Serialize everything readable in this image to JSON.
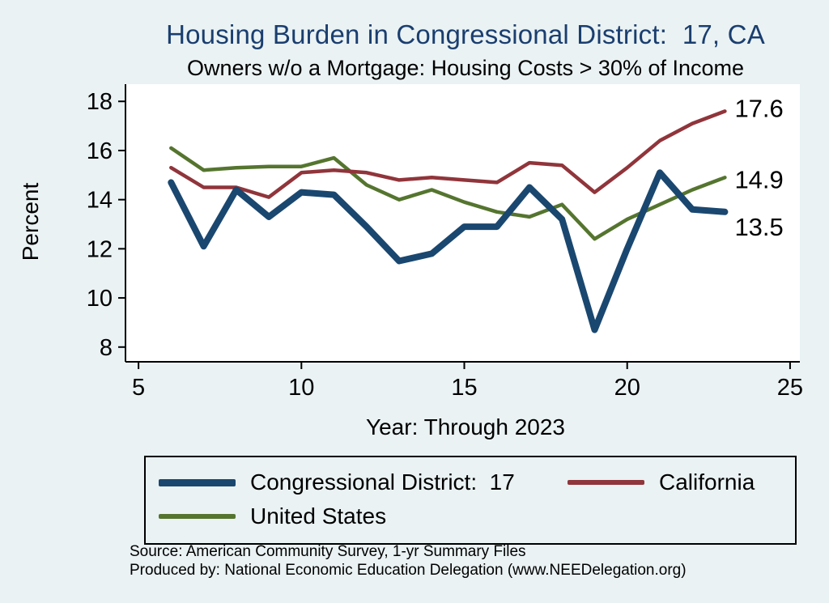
{
  "page": {
    "background": "#eaf2f3",
    "accent_title_color": "#1a3e6f"
  },
  "chart_data": {
    "type": "line",
    "title": "Housing Burden in Congressional District:  17, CA",
    "subtitle": "Owners w/o a Mortgage: Housing Costs > 30% of Income",
    "ylabel": "Percent",
    "xlabel": "Year: Through 2023",
    "xlim": [
      4.6,
      25.3
    ],
    "ylim": [
      7.4,
      18.7
    ],
    "x_ticks": [
      5,
      10,
      15,
      20,
      25
    ],
    "y_ticks": [
      8,
      10,
      12,
      14,
      16,
      18
    ],
    "grid": false,
    "legend_position": "bottom",
    "x": [
      6,
      7,
      8,
      9,
      10,
      11,
      12,
      13,
      14,
      15,
      16,
      17,
      18,
      19,
      20,
      21,
      22,
      23
    ],
    "series": [
      {
        "name": "Congressional District:  17",
        "color": "#1a476f",
        "line_width": 8,
        "end_label": "13.5",
        "values": [
          14.7,
          12.1,
          14.4,
          13.3,
          14.3,
          14.2,
          12.9,
          11.5,
          11.8,
          12.9,
          12.9,
          14.5,
          13.2,
          8.7,
          12.0,
          15.1,
          13.6,
          13.5
        ]
      },
      {
        "name": "California",
        "color": "#90353b",
        "line_width": 4.5,
        "end_label": "17.6",
        "values": [
          15.3,
          14.5,
          14.5,
          14.1,
          15.1,
          15.2,
          15.1,
          14.8,
          14.9,
          14.8,
          14.7,
          15.5,
          15.4,
          14.3,
          15.3,
          16.4,
          17.1,
          17.6
        ]
      },
      {
        "name": "United States",
        "color": "#55752f",
        "line_width": 4.5,
        "end_label": "14.9",
        "values": [
          16.1,
          15.2,
          15.3,
          15.35,
          15.35,
          15.7,
          14.6,
          14.0,
          14.4,
          13.9,
          13.5,
          13.3,
          13.8,
          12.4,
          13.2,
          13.8,
          14.4,
          14.9
        ]
      }
    ]
  },
  "footer": {
    "source": "Source: American Community Survey, 1-yr Summary Files",
    "produced_by": "Produced by: National Economic Education Delegation (www.NEEDelegation.org)"
  }
}
